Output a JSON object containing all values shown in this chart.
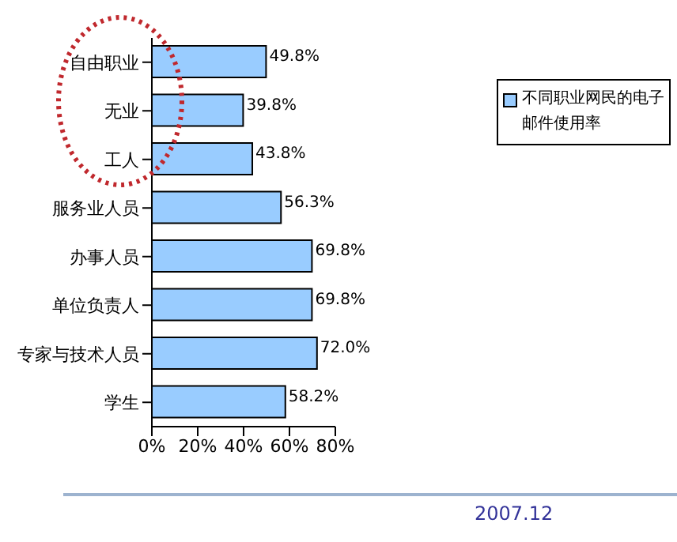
{
  "chart_data": {
    "type": "bar",
    "orientation": "horizontal",
    "categories": [
      "自由职业",
      "无业",
      "工人",
      "服务业人员",
      "办事人员",
      "单位负责人",
      "专家与技术人员",
      "学生"
    ],
    "series": [
      {
        "name": "不同职业网民的电子邮件使用率",
        "color": "#99ccff",
        "values": [
          49.8,
          39.8,
          43.8,
          56.3,
          69.8,
          69.8,
          72.0,
          58.2
        ],
        "value_labels": [
          "49.8%",
          "39.8%",
          "43.8%",
          "56.3%",
          "69.8%",
          "69.8%",
          "72.0%",
          "58.2%"
        ]
      }
    ],
    "xlim": [
      0,
      80
    ],
    "xticks": [
      {
        "value": 0,
        "label": "0%"
      },
      {
        "value": 20,
        "label": "20%"
      },
      {
        "value": 40,
        "label": "40%"
      },
      {
        "value": 60,
        "label": "60%"
      },
      {
        "value": 80,
        "label": "80%"
      }
    ],
    "grid": false,
    "legend": "right",
    "annotations": [
      "2007.12"
    ]
  }
}
